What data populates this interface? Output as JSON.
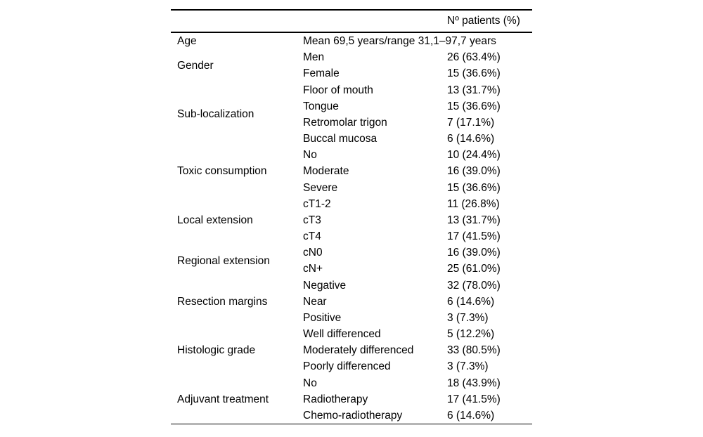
{
  "colors": {
    "background": "#ffffff",
    "text": "#000000",
    "rule": "#000000"
  },
  "table": {
    "header": {
      "col1": "",
      "col2": "",
      "col3": "Nº patients (%)"
    },
    "groups": [
      {
        "category": "Age",
        "rows": [
          {
            "label": "Mean 69,5 years/range 31,1–97,7 years",
            "value": ""
          }
        ]
      },
      {
        "category": "Gender",
        "rows": [
          {
            "label": "Men",
            "value": "26 (63.4%)"
          },
          {
            "label": "Female",
            "value": "15 (36.6%)"
          }
        ]
      },
      {
        "category": "Sub-localization",
        "rows": [
          {
            "label": "Floor of mouth",
            "value": "13 (31.7%)"
          },
          {
            "label": "Tongue",
            "value": "15 (36.6%)"
          },
          {
            "label": "Retromolar trigon",
            "value": "7 (17.1%)"
          },
          {
            "label": "Buccal mucosa",
            "value": "6 (14.6%)"
          }
        ]
      },
      {
        "category": "Toxic consumption",
        "rows": [
          {
            "label": "No",
            "value": "10 (24.4%)"
          },
          {
            "label": "Moderate",
            "value": "16 (39.0%)"
          },
          {
            "label": "Severe",
            "value": "15 (36.6%)"
          }
        ]
      },
      {
        "category": "Local extension",
        "rows": [
          {
            "label": "cT1-2",
            "value": "11 (26.8%)"
          },
          {
            "label": "cT3",
            "value": "13 (31.7%)"
          },
          {
            "label": "cT4",
            "value": "17 (41.5%)"
          }
        ]
      },
      {
        "category": "Regional extension",
        "rows": [
          {
            "label": "cN0",
            "value": "16 (39.0%)"
          },
          {
            "label": "cN+",
            "value": "25 (61.0%)"
          }
        ]
      },
      {
        "category": "Resection margins",
        "rows": [
          {
            "label": "Negative",
            "value": "32 (78.0%)"
          },
          {
            "label": "Near",
            "value": "6 (14.6%)"
          },
          {
            "label": "Positive",
            "value": "3 (7.3%)"
          }
        ]
      },
      {
        "category": "Histologic grade",
        "rows": [
          {
            "label": "Well differenced",
            "value": "5 (12.2%)"
          },
          {
            "label": "Moderately differenced",
            "value": "33 (80.5%)"
          },
          {
            "label": "Poorly differenced",
            "value": "3 (7.3%)"
          }
        ]
      },
      {
        "category": "Adjuvant treatment",
        "rows": [
          {
            "label": "No",
            "value": "18 (43.9%)"
          },
          {
            "label": "Radiotherapy",
            "value": "17 (41.5%)"
          },
          {
            "label": "Chemo-radiotherapy",
            "value": "6 (14.6%)"
          }
        ]
      }
    ]
  }
}
